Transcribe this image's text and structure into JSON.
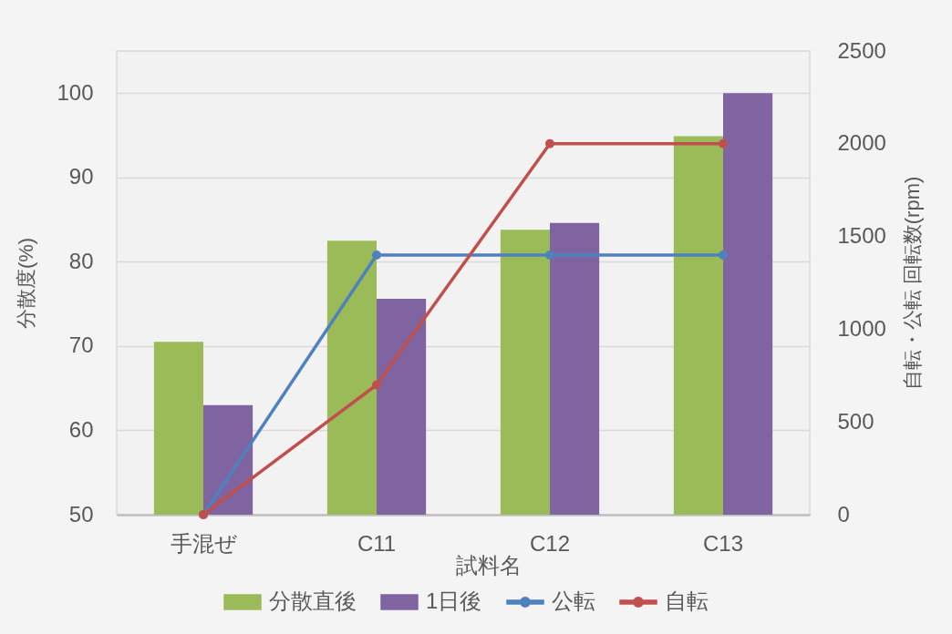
{
  "chart_data": {
    "type": "bar",
    "xlabel": "試料名",
    "ylabel": "分散度(%)",
    "y2label": "自転・公転 回転数(rpm)",
    "categories": [
      "手混ぜ",
      "C11",
      "C12",
      "C13"
    ],
    "series": [
      {
        "name": "分散直後",
        "color": "#9bbb59",
        "values": [
          70.5,
          82.5,
          83.8,
          94.9
        ]
      },
      {
        "name": "1日後",
        "color": "#8064a2",
        "values": [
          63,
          75.6,
          84.6,
          100
        ]
      },
      {
        "name": "公転",
        "type": "line",
        "axis": "y2",
        "color": "#4f81bd",
        "values": [
          0,
          1400,
          1400,
          1400
        ]
      },
      {
        "name": "自転",
        "type": "line",
        "axis": "y2",
        "color": "#c0504d",
        "values": [
          0,
          700,
          2000,
          2000
        ]
      }
    ],
    "ylim": [
      50,
      105
    ],
    "yticks": [
      50,
      60,
      70,
      80,
      90,
      100
    ],
    "y2lim": [
      0,
      2500
    ],
    "y2ticks": [
      0,
      500,
      1000,
      1500,
      2000,
      2500
    ],
    "grid": "y",
    "legend": "bottom",
    "marker": "circle"
  }
}
